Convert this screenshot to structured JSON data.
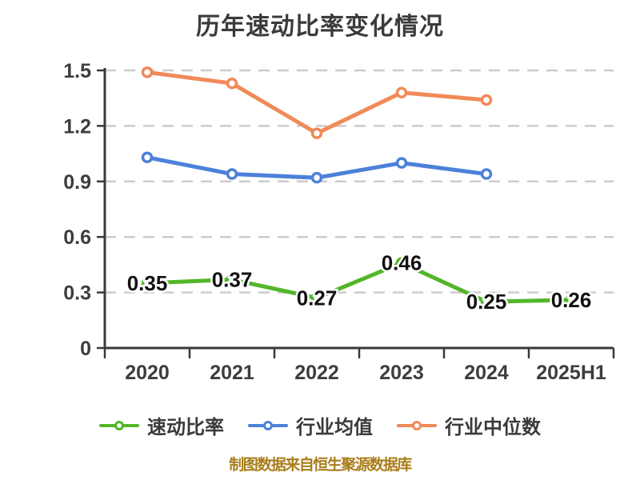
{
  "chart_data": {
    "type": "line",
    "title": "历年速动比率变化情况",
    "footer": "制图数据来自恒生聚源数据库",
    "categories": [
      "2020",
      "2021",
      "2022",
      "2023",
      "2024",
      "2025H1"
    ],
    "yticks": [
      "0",
      "0.3",
      "0.6",
      "0.9",
      "1.2",
      "1.5"
    ],
    "ylim": [
      0,
      1.5
    ],
    "grid": "horizontal-dashed",
    "legend_position": "bottom",
    "series": [
      {
        "name": "速动比率",
        "color": "#53b62a",
        "values": [
          0.35,
          0.37,
          0.27,
          0.46,
          0.25,
          0.26
        ],
        "point_labels": [
          "0.35",
          "0.37",
          "0.27",
          "0.46",
          "0.25",
          "0.26"
        ]
      },
      {
        "name": "行业均值",
        "color": "#4c81d9",
        "values": [
          1.03,
          0.94,
          0.92,
          1.0,
          0.94,
          null
        ],
        "point_labels": null
      },
      {
        "name": "行业中位数",
        "color": "#f08a58",
        "values": [
          1.49,
          1.43,
          1.16,
          1.38,
          1.34,
          null
        ],
        "point_labels": null
      }
    ],
    "colors": {
      "title_text": "#3b3b3b",
      "axis": "#3a3a3a",
      "grid": "#cccccc",
      "tick_text": "#3d3d3d",
      "data_label_text": "#111111",
      "point_fill": "#ffffff",
      "legend_text": "#3a3a3a",
      "footer_text": "#a97d1a",
      "background": "#ffffff"
    }
  }
}
